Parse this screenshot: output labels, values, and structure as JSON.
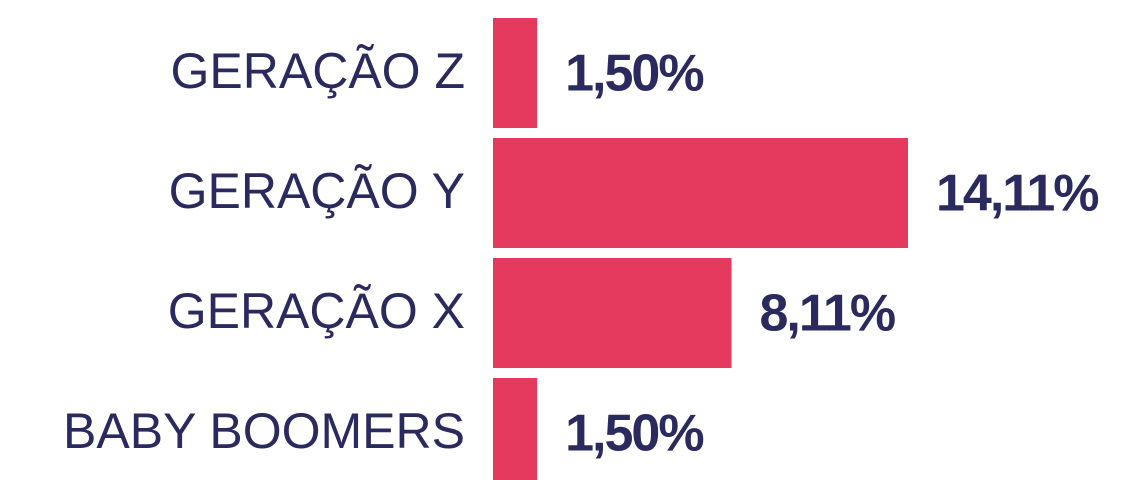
{
  "chart_data": {
    "type": "bar",
    "orientation": "horizontal",
    "categories": [
      "GERAÇÃO Z",
      "GERAÇÃO Y",
      "GERAÇÃO X",
      "BABY BOOMERS"
    ],
    "values": [
      1.5,
      14.11,
      8.11,
      1.5
    ],
    "value_labels": [
      "1,50%",
      "14,11%",
      "8,11%",
      "1,50%"
    ],
    "color": "#e5395e"
  }
}
